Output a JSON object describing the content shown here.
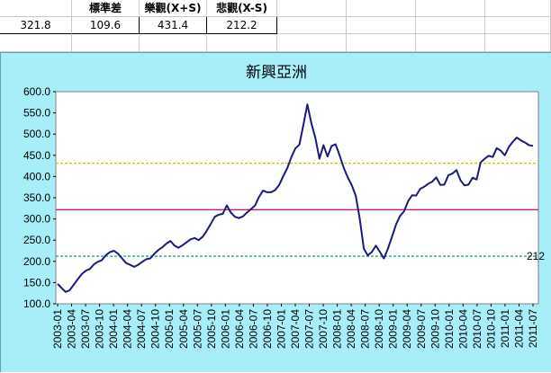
{
  "table": {
    "headers": [
      "",
      "標準差",
      "樂觀(X+S)",
      "悲觀(X-S)"
    ],
    "values": [
      "321.8",
      "109.6",
      "431.4",
      "212.2"
    ]
  },
  "chart_data": {
    "type": "line",
    "title": "新興亞洲",
    "ylim": [
      100,
      600
    ],
    "yticks": [
      "100.0",
      "150.0",
      "200.0",
      "250.0",
      "300.0",
      "350.0",
      "400.0",
      "450.0",
      "500.0",
      "550.0",
      "600.0"
    ],
    "xticks": [
      "2003-01",
      "2003-04",
      "2003-07",
      "2003-10",
      "2004-01",
      "2004-04",
      "2004-07",
      "2004-10",
      "2005-01",
      "2005-04",
      "2005-07",
      "2005-10",
      "2006-01",
      "2006-04",
      "2006-07",
      "2006-10",
      "2007-01",
      "2007-04",
      "2007-07",
      "2007-10",
      "2008-01",
      "2008-04",
      "2008-07",
      "2008-10",
      "2009-01",
      "2009-04",
      "2009-07",
      "2009-10",
      "2010-01",
      "2010-04",
      "2010-07",
      "2010-10",
      "2011-01",
      "2011-04",
      "2011-07"
    ],
    "series": [
      {
        "color": "#1a1a80",
        "x_start": "2003-01",
        "x_step": "1 month",
        "values": [
          147,
          137,
          128,
          132,
          145,
          158,
          170,
          178,
          182,
          193,
          199,
          203,
          215,
          222,
          225,
          218,
          207,
          196,
          192,
          187,
          192,
          199,
          205,
          207,
          218,
          227,
          233,
          242,
          248,
          237,
          232,
          238,
          245,
          252,
          255,
          250,
          258,
          272,
          288,
          305,
          310,
          312,
          332,
          315,
          305,
          302,
          306,
          315,
          323,
          332,
          352,
          367,
          363,
          363,
          368,
          380,
          401,
          420,
          445,
          466,
          475,
          521,
          570,
          525,
          490,
          442,
          474,
          447,
          472,
          476,
          450,
          421,
          398,
          380,
          355,
          300,
          230,
          214,
          222,
          237,
          222,
          207,
          230,
          258,
          287,
          307,
          318,
          342,
          356,
          355,
          371,
          376,
          383,
          388,
          398,
          380,
          381,
          403,
          407,
          415,
          391,
          379,
          381,
          397,
          393,
          433,
          442,
          449,
          446,
          467,
          461,
          450,
          470,
          482,
          492,
          485,
          480,
          474,
          472
        ]
      }
    ],
    "reference_lines": [
      {
        "value": 431.4,
        "color": "#d4c400"
      },
      {
        "value": 321.8,
        "color": "#c02080"
      },
      {
        "value": 212.2,
        "color": "#20a090",
        "label": "212"
      }
    ]
  },
  "colors": {
    "chart_bg": "#a8eef8",
    "plot_bg": "#ffffff"
  }
}
